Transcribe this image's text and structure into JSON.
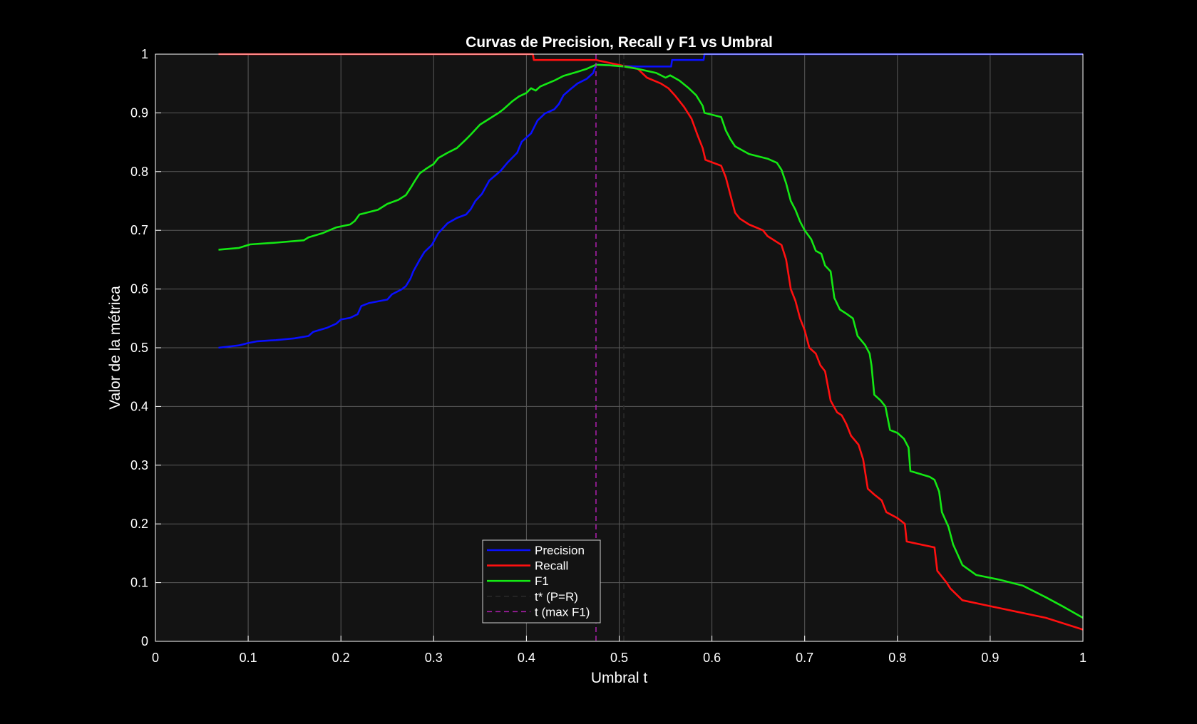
{
  "chart_data": {
    "type": "line",
    "title": "Curvas de Precision, Recall y F1 vs Umbral",
    "xlabel": "Umbral t",
    "ylabel": "Valor de la métrica",
    "xlim": [
      0,
      1
    ],
    "ylim": [
      0,
      1
    ],
    "xticks": [
      "0",
      "0.1",
      "0.2",
      "0.3",
      "0.4",
      "0.5",
      "0.6",
      "0.7",
      "0.8",
      "0.9",
      "1"
    ],
    "yticks": [
      "0",
      "0.1",
      "0.2",
      "0.3",
      "0.4",
      "0.5",
      "0.6",
      "0.7",
      "0.8",
      "0.9",
      "1"
    ],
    "grid": true,
    "legend_position": "bottom-center",
    "colors": {
      "figure_background": "#000000",
      "axes_background": "#131313",
      "grid": "#5a5a5a",
      "text": "#ffffff"
    },
    "series": [
      {
        "name": "Precision",
        "color": "#0a10ff",
        "points": [
          [
            0.068,
            0.5
          ],
          [
            0.09,
            0.504
          ],
          [
            0.1,
            0.508
          ],
          [
            0.11,
            0.511
          ],
          [
            0.13,
            0.513
          ],
          [
            0.15,
            0.516
          ],
          [
            0.165,
            0.52
          ],
          [
            0.17,
            0.527
          ],
          [
            0.185,
            0.534
          ],
          [
            0.195,
            0.541
          ],
          [
            0.2,
            0.548
          ],
          [
            0.21,
            0.551
          ],
          [
            0.218,
            0.557
          ],
          [
            0.222,
            0.571
          ],
          [
            0.23,
            0.576
          ],
          [
            0.25,
            0.582
          ],
          [
            0.255,
            0.591
          ],
          [
            0.265,
            0.599
          ],
          [
            0.27,
            0.605
          ],
          [
            0.275,
            0.618
          ],
          [
            0.278,
            0.63
          ],
          [
            0.285,
            0.65
          ],
          [
            0.29,
            0.663
          ],
          [
            0.298,
            0.675
          ],
          [
            0.305,
            0.695
          ],
          [
            0.315,
            0.712
          ],
          [
            0.325,
            0.721
          ],
          [
            0.335,
            0.727
          ],
          [
            0.34,
            0.736
          ],
          [
            0.345,
            0.75
          ],
          [
            0.352,
            0.762
          ],
          [
            0.36,
            0.785
          ],
          [
            0.372,
            0.801
          ],
          [
            0.38,
            0.816
          ],
          [
            0.39,
            0.832
          ],
          [
            0.395,
            0.851
          ],
          [
            0.405,
            0.865
          ],
          [
            0.412,
            0.887
          ],
          [
            0.42,
            0.899
          ],
          [
            0.43,
            0.906
          ],
          [
            0.435,
            0.915
          ],
          [
            0.44,
            0.93
          ],
          [
            0.448,
            0.941
          ],
          [
            0.455,
            0.95
          ],
          [
            0.465,
            0.958
          ],
          [
            0.472,
            0.968
          ],
          [
            0.475,
            0.982
          ],
          [
            0.49,
            0.981
          ],
          [
            0.505,
            0.98
          ],
          [
            0.52,
            0.979
          ],
          [
            0.54,
            0.979
          ],
          [
            0.556,
            0.979
          ],
          [
            0.557,
            0.99
          ],
          [
            0.591,
            0.99
          ],
          [
            0.592,
            1.0
          ],
          [
            1.0,
            1.0
          ]
        ]
      },
      {
        "name": "Recall",
        "color": "#ff1010",
        "points": [
          [
            0.068,
            1.0
          ],
          [
            0.407,
            1.0
          ],
          [
            0.408,
            0.99
          ],
          [
            0.475,
            0.99
          ],
          [
            0.49,
            0.985
          ],
          [
            0.505,
            0.98
          ],
          [
            0.52,
            0.975
          ],
          [
            0.53,
            0.96
          ],
          [
            0.545,
            0.95
          ],
          [
            0.553,
            0.942
          ],
          [
            0.56,
            0.93
          ],
          [
            0.565,
            0.92
          ],
          [
            0.57,
            0.91
          ],
          [
            0.578,
            0.89
          ],
          [
            0.585,
            0.86
          ],
          [
            0.59,
            0.84
          ],
          [
            0.593,
            0.82
          ],
          [
            0.61,
            0.81
          ],
          [
            0.615,
            0.79
          ],
          [
            0.62,
            0.76
          ],
          [
            0.625,
            0.73
          ],
          [
            0.63,
            0.72
          ],
          [
            0.64,
            0.71
          ],
          [
            0.655,
            0.7
          ],
          [
            0.66,
            0.69
          ],
          [
            0.675,
            0.675
          ],
          [
            0.68,
            0.65
          ],
          [
            0.685,
            0.6
          ],
          [
            0.69,
            0.58
          ],
          [
            0.695,
            0.55
          ],
          [
            0.7,
            0.53
          ],
          [
            0.705,
            0.5
          ],
          [
            0.712,
            0.49
          ],
          [
            0.717,
            0.47
          ],
          [
            0.722,
            0.46
          ],
          [
            0.728,
            0.41
          ],
          [
            0.735,
            0.39
          ],
          [
            0.74,
            0.385
          ],
          [
            0.745,
            0.37
          ],
          [
            0.75,
            0.35
          ],
          [
            0.758,
            0.335
          ],
          [
            0.763,
            0.31
          ],
          [
            0.768,
            0.26
          ],
          [
            0.775,
            0.25
          ],
          [
            0.783,
            0.24
          ],
          [
            0.788,
            0.22
          ],
          [
            0.8,
            0.21
          ],
          [
            0.808,
            0.2
          ],
          [
            0.81,
            0.17
          ],
          [
            0.84,
            0.16
          ],
          [
            0.843,
            0.12
          ],
          [
            0.853,
            0.1
          ],
          [
            0.857,
            0.09
          ],
          [
            0.87,
            0.07
          ],
          [
            0.9,
            0.06
          ],
          [
            0.93,
            0.05
          ],
          [
            0.96,
            0.04
          ],
          [
            0.98,
            0.03
          ],
          [
            1.0,
            0.02
          ]
        ]
      },
      {
        "name": "F1",
        "color": "#14e814",
        "points": [
          [
            0.068,
            0.667
          ],
          [
            0.09,
            0.67
          ],
          [
            0.102,
            0.676
          ],
          [
            0.13,
            0.679
          ],
          [
            0.16,
            0.683
          ],
          [
            0.165,
            0.688
          ],
          [
            0.18,
            0.695
          ],
          [
            0.195,
            0.705
          ],
          [
            0.21,
            0.71
          ],
          [
            0.215,
            0.716
          ],
          [
            0.22,
            0.727
          ],
          [
            0.24,
            0.735
          ],
          [
            0.25,
            0.745
          ],
          [
            0.262,
            0.752
          ],
          [
            0.27,
            0.76
          ],
          [
            0.275,
            0.772
          ],
          [
            0.28,
            0.785
          ],
          [
            0.285,
            0.797
          ],
          [
            0.292,
            0.805
          ],
          [
            0.3,
            0.813
          ],
          [
            0.305,
            0.823
          ],
          [
            0.315,
            0.832
          ],
          [
            0.325,
            0.84
          ],
          [
            0.335,
            0.855
          ],
          [
            0.34,
            0.863
          ],
          [
            0.35,
            0.88
          ],
          [
            0.36,
            0.89
          ],
          [
            0.37,
            0.9
          ],
          [
            0.375,
            0.906
          ],
          [
            0.38,
            0.913
          ],
          [
            0.385,
            0.92
          ],
          [
            0.392,
            0.928
          ],
          [
            0.4,
            0.934
          ],
          [
            0.405,
            0.942
          ],
          [
            0.41,
            0.938
          ],
          [
            0.415,
            0.945
          ],
          [
            0.43,
            0.955
          ],
          [
            0.44,
            0.963
          ],
          [
            0.455,
            0.97
          ],
          [
            0.465,
            0.975
          ],
          [
            0.475,
            0.982
          ],
          [
            0.49,
            0.981
          ],
          [
            0.505,
            0.979
          ],
          [
            0.52,
            0.975
          ],
          [
            0.54,
            0.968
          ],
          [
            0.55,
            0.96
          ],
          [
            0.555,
            0.964
          ],
          [
            0.565,
            0.955
          ],
          [
            0.575,
            0.942
          ],
          [
            0.583,
            0.93
          ],
          [
            0.59,
            0.912
          ],
          [
            0.592,
            0.9
          ],
          [
            0.61,
            0.893
          ],
          [
            0.615,
            0.87
          ],
          [
            0.62,
            0.855
          ],
          [
            0.625,
            0.843
          ],
          [
            0.64,
            0.83
          ],
          [
            0.66,
            0.822
          ],
          [
            0.67,
            0.815
          ],
          [
            0.675,
            0.803
          ],
          [
            0.68,
            0.78
          ],
          [
            0.685,
            0.75
          ],
          [
            0.69,
            0.735
          ],
          [
            0.695,
            0.715
          ],
          [
            0.7,
            0.7
          ],
          [
            0.707,
            0.685
          ],
          [
            0.712,
            0.665
          ],
          [
            0.718,
            0.66
          ],
          [
            0.722,
            0.64
          ],
          [
            0.728,
            0.63
          ],
          [
            0.732,
            0.585
          ],
          [
            0.738,
            0.565
          ],
          [
            0.745,
            0.558
          ],
          [
            0.752,
            0.55
          ],
          [
            0.757,
            0.52
          ],
          [
            0.765,
            0.505
          ],
          [
            0.77,
            0.49
          ],
          [
            0.772,
            0.47
          ],
          [
            0.775,
            0.42
          ],
          [
            0.782,
            0.41
          ],
          [
            0.787,
            0.4
          ],
          [
            0.792,
            0.36
          ],
          [
            0.8,
            0.355
          ],
          [
            0.807,
            0.345
          ],
          [
            0.812,
            0.33
          ],
          [
            0.814,
            0.29
          ],
          [
            0.835,
            0.28
          ],
          [
            0.84,
            0.275
          ],
          [
            0.845,
            0.255
          ],
          [
            0.848,
            0.22
          ],
          [
            0.855,
            0.195
          ],
          [
            0.86,
            0.165
          ],
          [
            0.87,
            0.13
          ],
          [
            0.885,
            0.113
          ],
          [
            0.91,
            0.105
          ],
          [
            0.935,
            0.095
          ],
          [
            0.96,
            0.075
          ],
          [
            0.98,
            0.058
          ],
          [
            1.0,
            0.04
          ]
        ]
      },
      {
        "name": "t* (P=R)",
        "color": "#2b2b2b",
        "dashed": true,
        "x": 0.505
      },
      {
        "name": "t (max F1)",
        "color": "#b01fb0",
        "dashed": true,
        "x": 0.475
      }
    ]
  }
}
